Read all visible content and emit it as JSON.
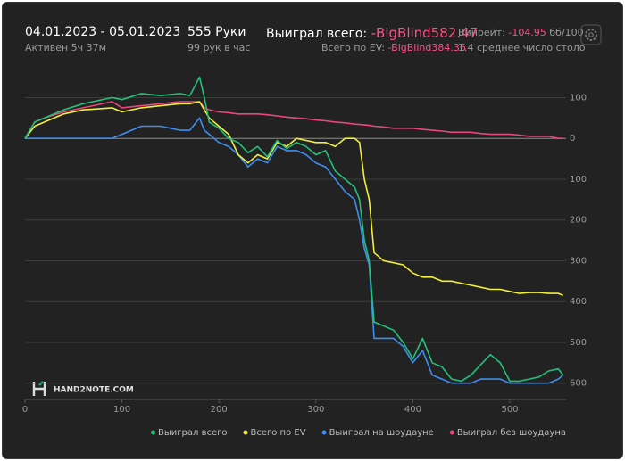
{
  "header": {
    "date_range": "04.01.2023 - 05.01.2023",
    "active": "Активен 5ч 37м",
    "hands": "555 Руки",
    "hands_per_hour": "99 рук в час",
    "won_total_label": "Выиграл всего:",
    "won_total_value": "-BigBlind582.47",
    "ev_label": "Всего по EV:",
    "ev_value": "-BigBlind384.36",
    "winrate_label": "Винрейт:",
    "winrate_value": "-104.95",
    "winrate_unit": "бб/100",
    "avg_tables": "1.4 среднее число столо",
    "logo": "HAND2NOTE.COM"
  },
  "chart_data": {
    "type": "line",
    "x": [
      0,
      10,
      20,
      40,
      60,
      90,
      100,
      120,
      140,
      160,
      170,
      180,
      185,
      190,
      200,
      210,
      220,
      230,
      240,
      250,
      260,
      270,
      280,
      290,
      300,
      310,
      320,
      330,
      340,
      345,
      350,
      355,
      360,
      370,
      380,
      390,
      400,
      410,
      420,
      430,
      440,
      450,
      460,
      470,
      480,
      490,
      500,
      510,
      520,
      530,
      540,
      550,
      555
    ],
    "series": [
      {
        "name": "Выиграл всего",
        "color": "#22c07a",
        "values": [
          0,
          40,
          50,
          70,
          85,
          100,
          95,
          110,
          105,
          110,
          105,
          150,
          100,
          40,
          25,
          0,
          -10,
          -35,
          -20,
          -45,
          -5,
          -25,
          -10,
          -20,
          -40,
          -30,
          -80,
          -100,
          -120,
          -150,
          -250,
          -300,
          -450,
          -460,
          -470,
          -500,
          -540,
          -490,
          -550,
          -560,
          -590,
          -595,
          -580,
          -555,
          -530,
          -550,
          -595,
          -595,
          -590,
          -585,
          -570,
          -565,
          -580
        ]
      },
      {
        "name": "Всего по EV",
        "color": "#f2ee3a",
        "values": [
          0,
          30,
          40,
          60,
          70,
          75,
          65,
          75,
          80,
          85,
          85,
          90,
          70,
          50,
          30,
          10,
          -40,
          -60,
          -40,
          -50,
          -10,
          -20,
          0,
          -5,
          -10,
          -10,
          -20,
          0,
          0,
          -10,
          -100,
          -150,
          -280,
          -300,
          -305,
          -310,
          -330,
          -340,
          -340,
          -350,
          -350,
          -355,
          -360,
          -365,
          -370,
          -370,
          -375,
          -380,
          -378,
          -378,
          -380,
          -380,
          -385
        ]
      },
      {
        "name": "Выиграл на шоудауне",
        "color": "#3d8ef0",
        "values": [
          0,
          0,
          0,
          0,
          0,
          0,
          10,
          30,
          30,
          20,
          20,
          50,
          20,
          10,
          -10,
          -20,
          -40,
          -70,
          -50,
          -60,
          -20,
          -30,
          -30,
          -40,
          -60,
          -70,
          -100,
          -130,
          -150,
          -200,
          -270,
          -310,
          -490,
          -490,
          -490,
          -510,
          -550,
          -520,
          -580,
          -590,
          -600,
          -600,
          -600,
          -590,
          -590,
          -590,
          -600,
          -600,
          -600,
          -600,
          -600,
          -590,
          -580
        ]
      },
      {
        "name": "Выиграл без шоудауна",
        "color": "#e8477a",
        "values": [
          0,
          40,
          50,
          65,
          75,
          90,
          75,
          80,
          85,
          90,
          90,
          90,
          75,
          70,
          65,
          63,
          60,
          60,
          60,
          58,
          55,
          52,
          50,
          48,
          45,
          43,
          40,
          38,
          35,
          34,
          33,
          32,
          30,
          28,
          25,
          25,
          25,
          22,
          20,
          18,
          15,
          15,
          15,
          12,
          10,
          10,
          10,
          8,
          5,
          5,
          5,
          0,
          0
        ]
      }
    ],
    "xlim": [
      0,
      558
    ],
    "xticks": [
      0,
      100,
      200,
      300,
      400,
      500
    ],
    "ylim": [
      -640,
      160
    ],
    "yticks": [
      100,
      0,
      {
        "value": -100,
        "label": "100"
      },
      {
        "value": -200,
        "label": "200"
      },
      {
        "value": -300,
        "label": "300"
      },
      {
        "value": -400,
        "label": "400"
      },
      {
        "value": -500,
        "label": "500"
      },
      {
        "value": -600,
        "label": "600"
      }
    ],
    "grid": true,
    "legend": "bottom"
  }
}
